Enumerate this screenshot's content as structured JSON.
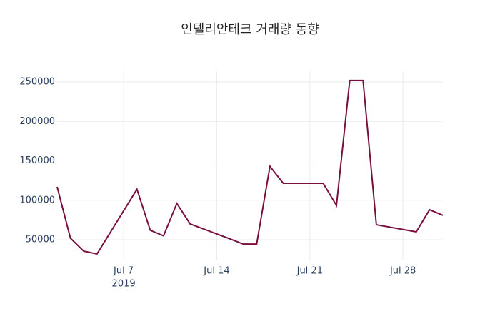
{
  "chart_data": {
    "type": "line",
    "title": "인텔리안테크 거래량 동향",
    "x": [
      "2019-07-02",
      "2019-07-03",
      "2019-07-04",
      "2019-07-05",
      "2019-07-08",
      "2019-07-09",
      "2019-07-10",
      "2019-07-11",
      "2019-07-12",
      "2019-07-15",
      "2019-07-16",
      "2019-07-17",
      "2019-07-18",
      "2019-07-19",
      "2019-07-22",
      "2019-07-23",
      "2019-07-24",
      "2019-07-25",
      "2019-07-26",
      "2019-07-29",
      "2019-07-30",
      "2019-07-31"
    ],
    "series": [
      {
        "color": "#7a0f3f",
        "values": [
          117000,
          52000,
          35500,
          32000,
          114000,
          62000,
          55000,
          96000,
          70000,
          51000,
          44500,
          44500,
          143000,
          121500,
          121500,
          93500,
          252000,
          252000,
          69000,
          60000,
          88000,
          81000
        ]
      }
    ],
    "xlim": [
      "2019-07-02",
      "2019-07-31"
    ],
    "xticks": [
      {
        "value": "2019-07-07",
        "label": "Jul 7"
      },
      {
        "value": "2019-07-14",
        "label": "Jul 14"
      },
      {
        "value": "2019-07-21",
        "label": "Jul 21"
      },
      {
        "value": "2019-07-28",
        "label": "Jul 28"
      }
    ],
    "x_year_label": "2019",
    "ylim": [
      23800,
      263600
    ],
    "yticks": [
      50000,
      100000,
      150000,
      200000,
      250000
    ],
    "grid": true
  }
}
